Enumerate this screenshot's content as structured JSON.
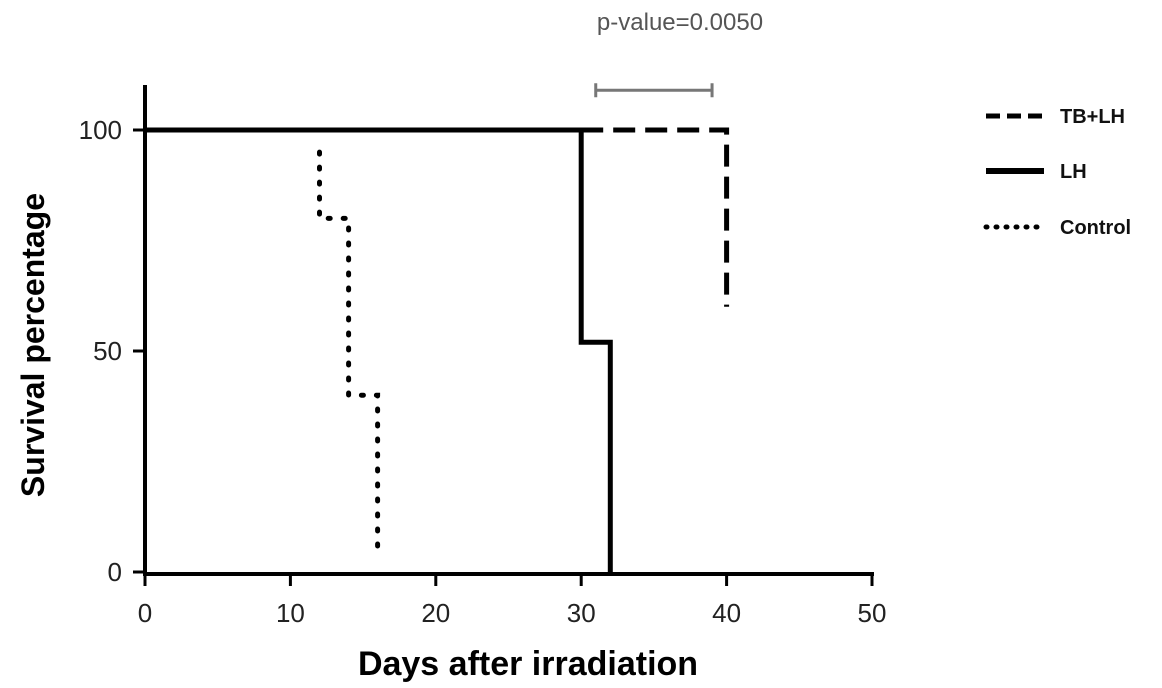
{
  "chart_data": {
    "type": "line",
    "subtype": "kaplan-meier survival step plot",
    "title": "",
    "xlabel": "Days after irradiation",
    "ylabel": "Survival percentage",
    "xlim": [
      0,
      50
    ],
    "ylim": [
      0,
      100
    ],
    "x_ticks": [
      0,
      10,
      20,
      30,
      40,
      50
    ],
    "x_tick_labels": [
      "0",
      "10",
      "20",
      "30",
      "40",
      "50"
    ],
    "y_ticks": [
      0,
      50,
      100
    ],
    "y_tick_labels": [
      "0",
      "50",
      "100"
    ],
    "grid": false,
    "legend_position": "right",
    "series": [
      {
        "name": "TB+LH",
        "style": "dashed",
        "color": "#000000",
        "x": [
          30,
          40,
          40
        ],
        "y": [
          100,
          100,
          60
        ]
      },
      {
        "name": "LH",
        "style": "solid",
        "color": "#000000",
        "x": [
          0,
          30,
          30,
          32,
          32
        ],
        "y": [
          100,
          100,
          52,
          52,
          0
        ]
      },
      {
        "name": "Control",
        "style": "dotted",
        "color": "#000000",
        "x": [
          12,
          12,
          14,
          14,
          16,
          16
        ],
        "y": [
          95,
          80,
          80,
          40,
          40,
          3
        ]
      }
    ],
    "annotation": {
      "text": "p-value=0.0050",
      "bracket_x": [
        31,
        39
      ],
      "bracket_y": 109
    },
    "colors": {
      "ylabel": "#000000",
      "annotation": "#555555",
      "bracket": "#777777"
    }
  }
}
